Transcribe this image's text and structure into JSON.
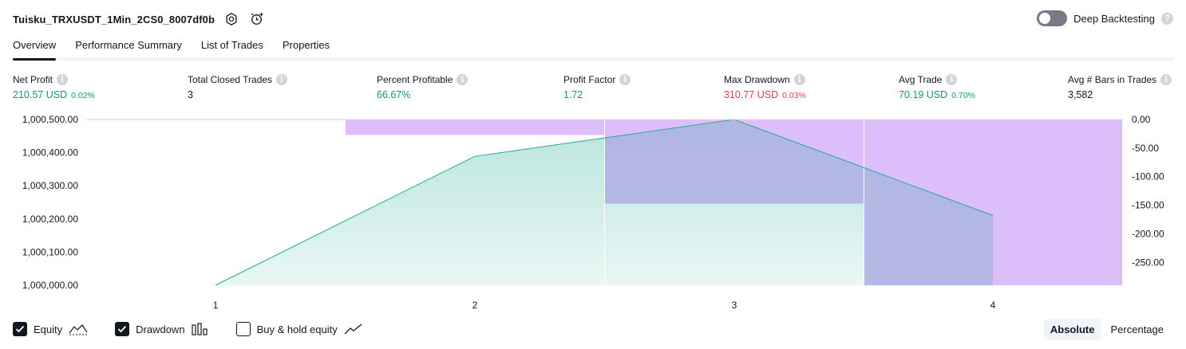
{
  "header": {
    "strategy_name": "Tuisku_TRXUSDT_1Min_2CS0_8007df0b",
    "settings_icon": "gear-icon",
    "alert_icon": "alarm-add-icon"
  },
  "deep_backtesting": {
    "label": "Deep Backtesting",
    "enabled": false,
    "help": "?"
  },
  "tabs": [
    {
      "label": "Overview",
      "active": true
    },
    {
      "label": "Performance Summary",
      "active": false
    },
    {
      "label": "List of Trades",
      "active": false
    },
    {
      "label": "Properties",
      "active": false
    }
  ],
  "metrics": {
    "net_profit": {
      "label": "Net Profit",
      "value": "210.57 USD",
      "pct": "0.02%"
    },
    "total_closed_trades": {
      "label": "Total Closed Trades",
      "value": "3"
    },
    "percent_profitable": {
      "label": "Percent Profitable",
      "value": "66.67%"
    },
    "profit_factor": {
      "label": "Profit Factor",
      "value": "1.72"
    },
    "max_drawdown": {
      "label": "Max Drawdown",
      "value": "310.77 USD",
      "pct": "0.03%"
    },
    "avg_trade": {
      "label": "Avg Trade",
      "value": "70.19 USD",
      "pct": "0.70%"
    },
    "avg_bars": {
      "label": "Avg # Bars in Trades",
      "value": "3,582"
    },
    "info_glyph": "i"
  },
  "colors": {
    "green": "#089981",
    "red": "#f23645",
    "equity_line": "#22ab94",
    "drawdown_fill": "#dcbefa",
    "overlap_fill": "#b3b7e3"
  },
  "chart_data": {
    "type": "area",
    "x": [
      1,
      2,
      3,
      4
    ],
    "x_tick_labels": [
      "1",
      "2",
      "3",
      "4"
    ],
    "series": [
      {
        "name": "Equity",
        "axis": "left",
        "values": [
          1000000.0,
          1000389.0,
          1000500.0,
          1000210.57
        ]
      },
      {
        "name": "Drawdown",
        "axis": "right",
        "type": "bar",
        "values": [
          -27.0,
          -147.0,
          -290.0,
          -290.0
        ]
      }
    ],
    "y_left_ticks": [
      "1,000,500.00",
      "1,000,400.00",
      "1,000,300.00",
      "1,000,200.00",
      "1,000,100.00",
      "1,000,000.00"
    ],
    "y_left_range": [
      1000000.0,
      1000500.0
    ],
    "y_right_ticks": [
      "0.00",
      "-50.00",
      "-100.00",
      "-150.00",
      "-200.00",
      "-250.00"
    ],
    "y_right_range": [
      -290.0,
      0.0
    ]
  },
  "legend": {
    "equity": {
      "label": "Equity",
      "checked": true,
      "icon": "equity-line-icon"
    },
    "drawdown": {
      "label": "Drawdown",
      "checked": true,
      "icon": "drawdown-bars-icon"
    },
    "buy_hold": {
      "label": "Buy & hold equity",
      "checked": false,
      "icon": "buy-hold-line-icon"
    }
  },
  "scale": {
    "absolute": "Absolute",
    "percentage": "Percentage",
    "selected": "Absolute"
  }
}
